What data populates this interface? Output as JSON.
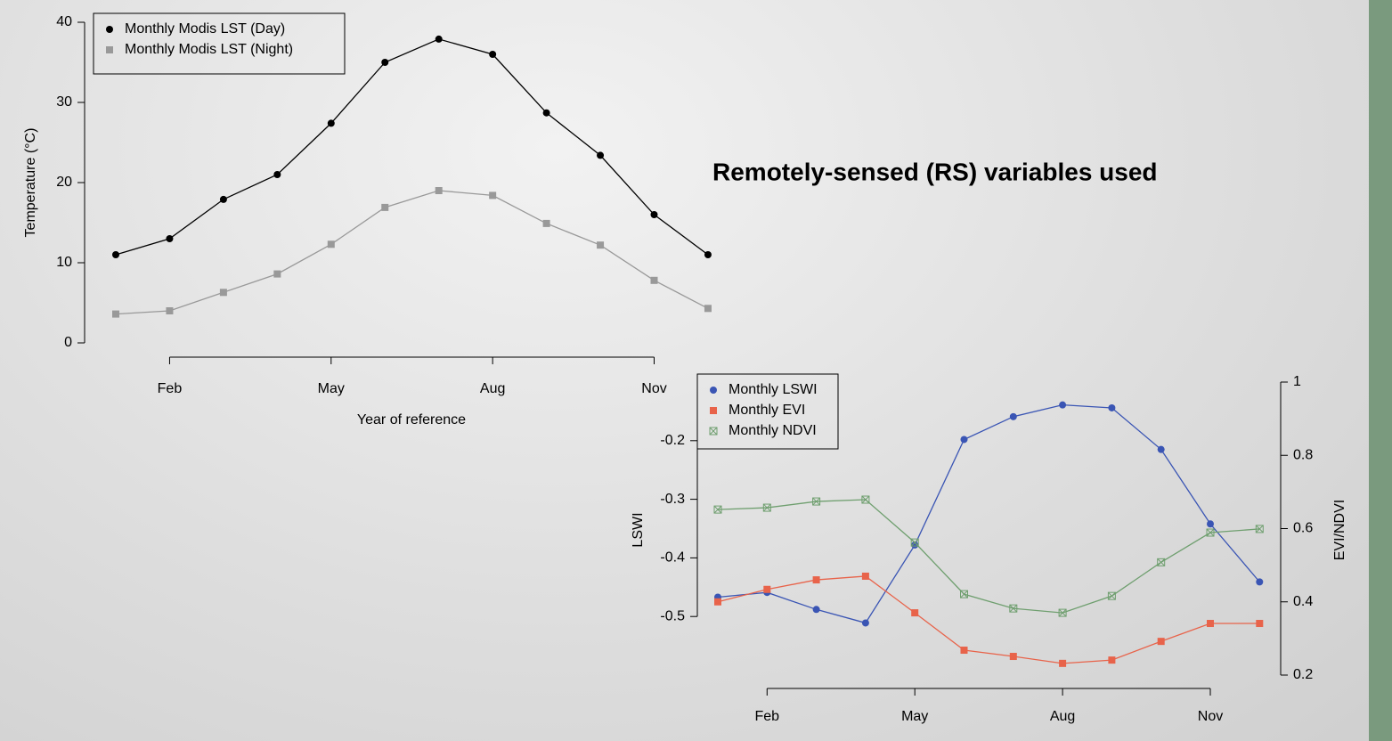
{
  "title": "Remotely-sensed (RS) variables used",
  "chart_data": [
    {
      "type": "line",
      "categories": [
        null,
        "Feb",
        null,
        null,
        "May",
        null,
        null,
        "Aug",
        null,
        null,
        "Nov",
        null
      ],
      "x_label": "Year of reference",
      "y_label": "Temperature (°C)",
      "ylim": [
        0,
        40
      ],
      "yticks": [
        0,
        10,
        20,
        30,
        40
      ],
      "legend": "top-left",
      "series": [
        {
          "name": "Monthly Modis LST (Day)",
          "color": "#000000",
          "marker": "circle",
          "values": [
            11,
            13,
            17.9,
            21,
            27.4,
            35,
            37.9,
            36,
            28.7,
            23.4,
            16,
            11
          ]
        },
        {
          "name": "Monthly Modis LST (Night)",
          "color": "#999999",
          "marker": "square",
          "values": [
            3.6,
            4,
            6.3,
            8.6,
            12.3,
            16.9,
            19,
            18.4,
            14.9,
            12.2,
            7.8,
            4.3
          ]
        }
      ]
    },
    {
      "type": "line",
      "categories": [
        null,
        "Feb",
        null,
        null,
        "May",
        null,
        null,
        "Aug",
        null,
        null,
        "Nov",
        null
      ],
      "y_label": "LSWI",
      "y2_label": "EVI/NDVI",
      "ylim": [
        -0.6,
        -0.1
      ],
      "yticks": [
        -0.5,
        -0.4,
        -0.3,
        -0.2
      ],
      "y2lim": [
        0.2,
        1.0
      ],
      "y2ticks": [
        0.2,
        0.4,
        0.6,
        0.8,
        1.0
      ],
      "legend": "top-left",
      "series": [
        {
          "name": "Monthly LSWI",
          "color": "#3a55b4",
          "marker": "circle",
          "values": [
            -0.467,
            -0.459,
            -0.488,
            -0.511,
            -0.378,
            -0.198,
            -0.159,
            -0.139,
            -0.144,
            -0.215,
            -0.342,
            -0.441
          ]
        },
        {
          "name": "Monthly EVI",
          "color": "#e8634a",
          "marker": "square",
          "axis": "y2",
          "values": [
            0.4,
            0.434,
            0.46,
            0.47,
            0.37,
            0.268,
            0.251,
            0.232,
            0.241,
            0.292,
            0.341,
            0.341
          ]
        },
        {
          "name": "Monthly NDVI",
          "color": "#6f9f6f",
          "marker": "boxx",
          "axis": "y2",
          "values": [
            0.652,
            0.657,
            0.674,
            0.679,
            0.562,
            0.421,
            0.382,
            0.37,
            0.416,
            0.508,
            0.589,
            0.599
          ]
        }
      ]
    }
  ]
}
